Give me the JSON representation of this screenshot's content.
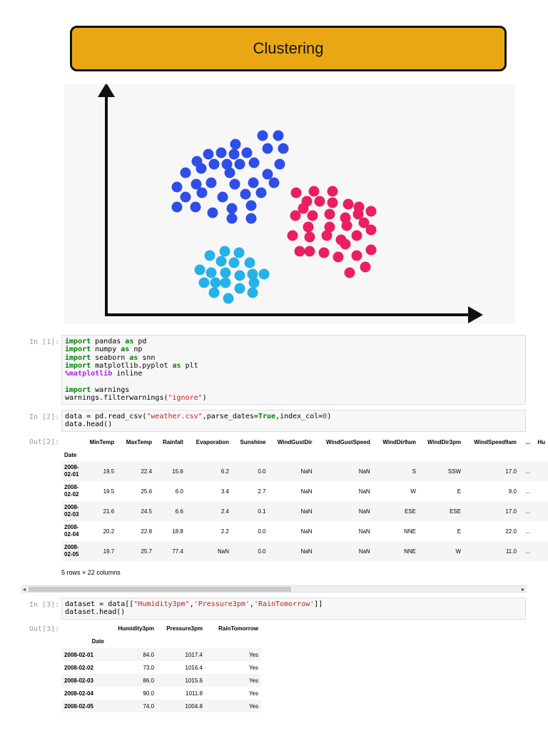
{
  "banner": {
    "title": "Clustering"
  },
  "figure": {
    "axis_color": "#111111",
    "clusters": [
      {
        "color": "#2f4ee8",
        "points": [
          [
            368,
            190
          ],
          [
            390,
            190
          ],
          [
            330,
            202
          ],
          [
            292,
            216
          ],
          [
            310,
            214
          ],
          [
            328,
            216
          ],
          [
            346,
            214
          ],
          [
            375,
            208
          ],
          [
            397,
            208
          ],
          [
            276,
            226
          ],
          [
            300,
            230
          ],
          [
            318,
            230
          ],
          [
            336,
            230
          ],
          [
            356,
            228
          ],
          [
            392,
            230
          ],
          [
            260,
            242
          ],
          [
            282,
            236
          ],
          [
            322,
            242
          ],
          [
            375,
            244
          ],
          [
            248,
            262
          ],
          [
            275,
            258
          ],
          [
            296,
            256
          ],
          [
            329,
            258
          ],
          [
            355,
            256
          ],
          [
            384,
            256
          ],
          [
            260,
            276
          ],
          [
            283,
            270
          ],
          [
            312,
            276
          ],
          [
            344,
            272
          ],
          [
            366,
            270
          ],
          [
            248,
            290
          ],
          [
            274,
            290
          ],
          [
            298,
            298
          ],
          [
            325,
            292
          ],
          [
            352,
            288
          ],
          [
            325,
            306
          ],
          [
            352,
            306
          ]
        ]
      },
      {
        "color": "#ea1f63",
        "points": [
          [
            415,
            270
          ],
          [
            440,
            268
          ],
          [
            466,
            268
          ],
          [
            430,
            282
          ],
          [
            448,
            282
          ],
          [
            466,
            284
          ],
          [
            425,
            292
          ],
          [
            488,
            286
          ],
          [
            503,
            290
          ],
          [
            520,
            296
          ],
          [
            414,
            302
          ],
          [
            438,
            302
          ],
          [
            462,
            300
          ],
          [
            484,
            305
          ],
          [
            502,
            300
          ],
          [
            432,
            318
          ],
          [
            462,
            318
          ],
          [
            486,
            316
          ],
          [
            510,
            312
          ],
          [
            410,
            330
          ],
          [
            434,
            332
          ],
          [
            458,
            330
          ],
          [
            478,
            336
          ],
          [
            500,
            330
          ],
          [
            520,
            322
          ],
          [
            420,
            352
          ],
          [
            434,
            352
          ],
          [
            454,
            354
          ],
          [
            484,
            342
          ],
          [
            520,
            350
          ],
          [
            474,
            360
          ],
          [
            500,
            358
          ],
          [
            490,
            382
          ],
          [
            512,
            374
          ]
        ]
      },
      {
        "color": "#26b1e8",
        "points": [
          [
            294,
            358
          ],
          [
            315,
            352
          ],
          [
            335,
            354
          ],
          [
            310,
            366
          ],
          [
            328,
            368
          ],
          [
            350,
            368
          ],
          [
            280,
            378
          ],
          [
            296,
            382
          ],
          [
            316,
            382
          ],
          [
            336,
            386
          ],
          [
            354,
            384
          ],
          [
            370,
            384
          ],
          [
            286,
            396
          ],
          [
            302,
            396
          ],
          [
            316,
            396
          ],
          [
            336,
            404
          ],
          [
            356,
            396
          ],
          [
            300,
            410
          ],
          [
            320,
            418
          ],
          [
            354,
            410
          ]
        ]
      }
    ]
  },
  "cells": [
    {
      "prompt": "In [1]:",
      "lines": [
        [
          [
            "kw",
            "import"
          ],
          [
            "cm",
            " pandas "
          ],
          [
            "kw",
            "as"
          ],
          [
            "cm",
            " pd"
          ]
        ],
        [
          [
            "kw",
            "import"
          ],
          [
            "cm",
            " numpy "
          ],
          [
            "kw",
            "as"
          ],
          [
            "cm",
            " np"
          ]
        ],
        [
          [
            "kw",
            "import"
          ],
          [
            "cm",
            " seaborn "
          ],
          [
            "kw",
            "as"
          ],
          [
            "cm",
            " snn"
          ]
        ],
        [
          [
            "kw",
            "import"
          ],
          [
            "cm",
            " matplotlib.pyplot "
          ],
          [
            "kw",
            "as"
          ],
          [
            "cm",
            " plt"
          ]
        ],
        [
          [
            "mag",
            "%matplotlib"
          ],
          [
            "cm",
            " inline"
          ]
        ],
        [
          [
            "cm",
            " "
          ]
        ],
        [
          [
            "kw",
            "import"
          ],
          [
            "cm",
            " warnings"
          ]
        ],
        [
          [
            "cm",
            "warnings.filterwarnings("
          ],
          [
            "str",
            "\"ignore\""
          ],
          [
            "cm",
            ")"
          ]
        ]
      ]
    },
    {
      "prompt": "In [2]:",
      "lines": [
        [
          [
            "cm",
            "data = pd.read_csv("
          ],
          [
            "str",
            "\"weather.csv\""
          ],
          [
            "cm",
            ",parse_dates="
          ],
          [
            "kw",
            "True"
          ],
          [
            "cm",
            ",index_col="
          ],
          [
            "num",
            "0"
          ],
          [
            "cm",
            ")"
          ]
        ],
        [
          [
            "cm",
            "data.head()"
          ]
        ]
      ]
    },
    {
      "prompt": "In [3]:",
      "lines": [
        [
          [
            "cm",
            "dataset = data[["
          ],
          [
            "str",
            "\"Humidity3pm\""
          ],
          [
            "cm",
            ","
          ],
          [
            "str",
            "'Pressure3pm'"
          ],
          [
            "cm",
            ","
          ],
          [
            "str",
            "'RainTomorrow'"
          ],
          [
            "cm",
            "]]"
          ]
        ],
        [
          [
            "cm",
            "dataset.head()"
          ]
        ]
      ]
    }
  ],
  "out2": {
    "prompt": "Out[2]:",
    "columns": [
      "MinTemp",
      "MaxTemp",
      "Rainfall",
      "Evaporation",
      "Sunshine",
      "WindGustDir",
      "WindGustSpeed",
      "WindDir9am",
      "WindDir3pm",
      "WindSpeed9am",
      "...",
      "Hu"
    ],
    "index_name": "Date",
    "rows": [
      {
        "date": [
          "2008-",
          "02-01"
        ],
        "values": [
          "19.5",
          "22.4",
          "15.6",
          "6.2",
          "0.0",
          "NaN",
          "NaN",
          "S",
          "SSW",
          "17.0",
          "..."
        ]
      },
      {
        "date": [
          "2008-",
          "02-02"
        ],
        "values": [
          "19.5",
          "25.6",
          "6.0",
          "3.4",
          "2.7",
          "NaN",
          "NaN",
          "W",
          "E",
          "9.0",
          "..."
        ]
      },
      {
        "date": [
          "2008-",
          "02-03"
        ],
        "values": [
          "21.6",
          "24.5",
          "6.6",
          "2.4",
          "0.1",
          "NaN",
          "NaN",
          "ESE",
          "ESE",
          "17.0",
          "..."
        ]
      },
      {
        "date": [
          "2008-",
          "02-04"
        ],
        "values": [
          "20.2",
          "22.8",
          "18.8",
          "2.2",
          "0.0",
          "NaN",
          "NaN",
          "NNE",
          "E",
          "22.0",
          "..."
        ]
      },
      {
        "date": [
          "2008-",
          "02-05"
        ],
        "values": [
          "19.7",
          "25.7",
          "77.4",
          "NaN",
          "0.0",
          "NaN",
          "NaN",
          "NNE",
          "W",
          "11.0",
          "..."
        ]
      }
    ],
    "shape_note": "5 rows × 22 columns"
  },
  "scroll": {
    "left_arrow": "◂",
    "right_arrow": "▸"
  },
  "out3": {
    "prompt": "Out[3]:",
    "columns": [
      "Humidity3pm",
      "Pressure3pm",
      "RainTomorrow"
    ],
    "index_name": "Date",
    "rows": [
      {
        "date": "2008-02-01",
        "values": [
          "84.0",
          "1017.4",
          "Yes"
        ]
      },
      {
        "date": "2008-02-02",
        "values": [
          "73.0",
          "1016.4",
          "Yes"
        ]
      },
      {
        "date": "2008-02-03",
        "values": [
          "86.0",
          "1015.6",
          "Yes"
        ]
      },
      {
        "date": "2008-02-04",
        "values": [
          "90.0",
          "1011.8",
          "Yes"
        ]
      },
      {
        "date": "2008-02-05",
        "values": [
          "74.0",
          "1004.8",
          "Yes"
        ]
      }
    ]
  }
}
